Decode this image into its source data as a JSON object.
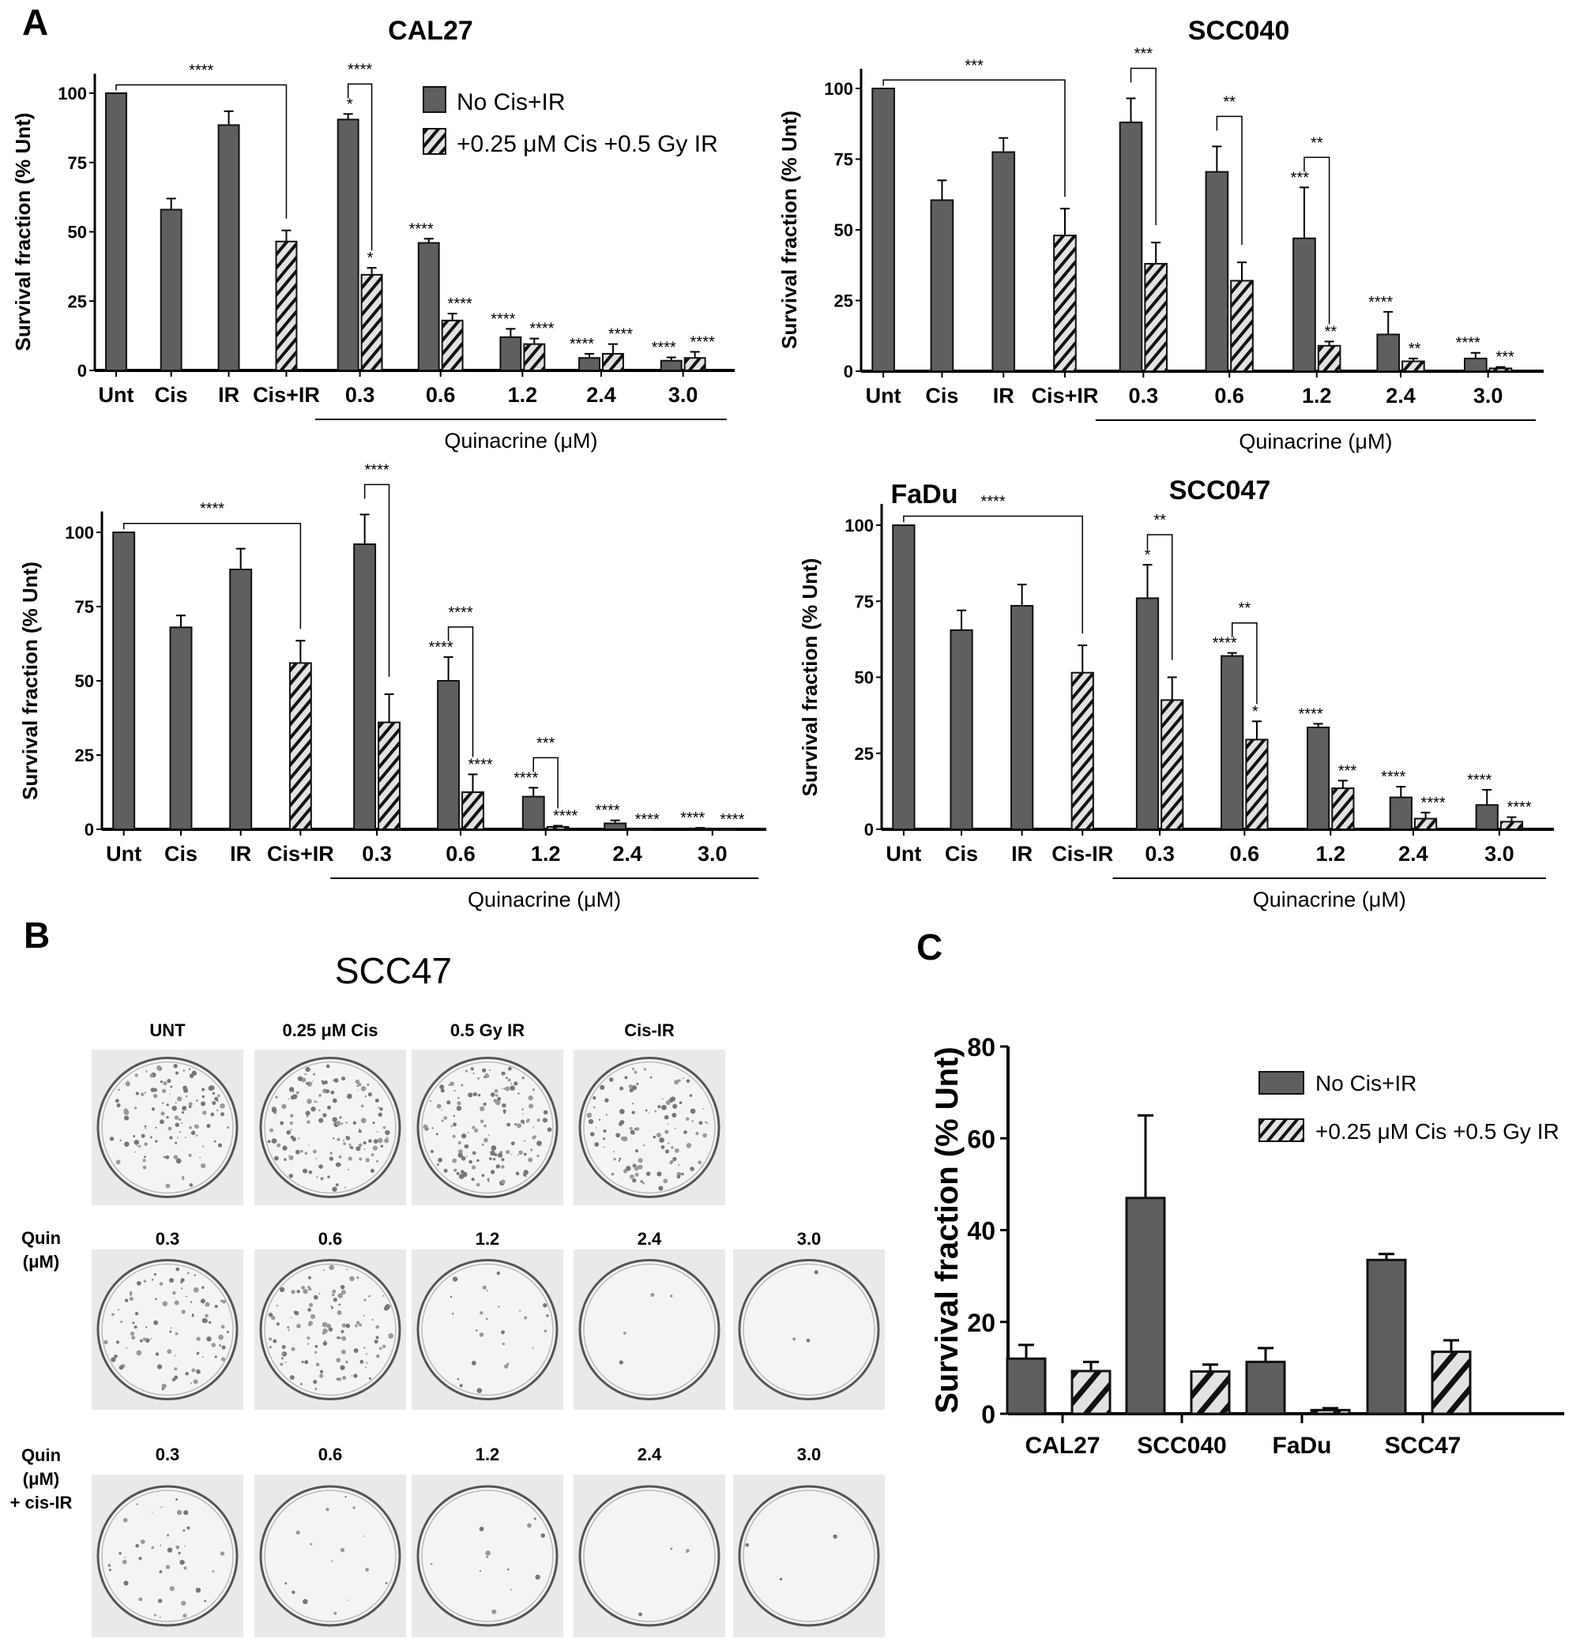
{
  "colors": {
    "no_cis_ir": "#5f5f5f",
    "cis_ir_hatch_bg": "#e2e2e2",
    "axis": "#000000"
  },
  "panel_labels": {
    "a": "A",
    "b": "B",
    "c": "C"
  },
  "legend": {
    "no_cis_ir": "No Cis+IR",
    "cis_ir": "+0.25 μM Cis +0.5 Gy IR"
  },
  "chart_data": [
    {
      "type": "bar",
      "title": "CAL27",
      "ylabel": "Survival fraction (% Unt)",
      "xlabel": "Quinacrine (μM)",
      "ylim": [
        0,
        107
      ],
      "yticks": [
        0,
        25,
        50,
        75,
        100
      ],
      "legend": "top-right",
      "categories": [
        "Unt",
        "Cis",
        "IR",
        "Cis+IR",
        "0.3",
        "0.6",
        "1.2",
        "2.4",
        "3.0"
      ],
      "series": [
        {
          "name": "No Cis+IR",
          "values": [
            100,
            58,
            88.5,
            null,
            90.5,
            46,
            12,
            4.5,
            3.5
          ],
          "errors": [
            0,
            4,
            5,
            null,
            2,
            1.5,
            3,
            1.5,
            1.2
          ],
          "sig": [
            "",
            "",
            "",
            "",
            "*",
            "****",
            "****",
            "****",
            "****"
          ]
        },
        {
          "name": "+0.25 μM Cis +0.5 Gy IR",
          "values": [
            null,
            null,
            null,
            46.5,
            34.5,
            18,
            9.5,
            6,
            4.5
          ],
          "errors": [
            null,
            null,
            null,
            4,
            2.5,
            2.5,
            2,
            3.5,
            2.2
          ],
          "sig": [
            "",
            "",
            "",
            "",
            "*",
            "****",
            "****",
            "****",
            "****"
          ]
        }
      ],
      "brackets": [
        {
          "from": "Unt",
          "to": "Cis+IR",
          "label": "****"
        },
        {
          "from": "0.3",
          "to": "0.3",
          "label": "****"
        }
      ]
    },
    {
      "type": "bar",
      "title": "SCC040",
      "ylabel": "Survival fraction (% Unt)",
      "xlabel": "Quinacrine (μM)",
      "ylim": [
        0,
        107
      ],
      "yticks": [
        0,
        25,
        50,
        75,
        100
      ],
      "categories": [
        "Unt",
        "Cis",
        "IR",
        "Cis+IR",
        "0.3",
        "0.6",
        "1.2",
        "2.4",
        "3.0"
      ],
      "series": [
        {
          "name": "No Cis+IR",
          "values": [
            100,
            60.5,
            77.5,
            null,
            88,
            70.5,
            47,
            13,
            4.5
          ],
          "errors": [
            0,
            7,
            5,
            null,
            8.5,
            9,
            18,
            8,
            2
          ],
          "sig": [
            "",
            "",
            "",
            "",
            "",
            "",
            "***",
            "****",
            "****"
          ]
        },
        {
          "name": "+0.25 μM Cis +0.5 Gy IR",
          "values": [
            null,
            null,
            null,
            48,
            38,
            32,
            9,
            3.5,
            1
          ],
          "errors": [
            null,
            null,
            null,
            9.5,
            7.5,
            6.5,
            1.5,
            1,
            0.5
          ],
          "sig": [
            "",
            "",
            "",
            "",
            "",
            "",
            "**",
            "**",
            "***"
          ]
        }
      ],
      "brackets": [
        {
          "from": "Unt",
          "to": "Cis+IR",
          "label": "***"
        },
        {
          "from": "0.3",
          "to": "0.3",
          "label": "***"
        },
        {
          "from": "0.6",
          "to": "0.6",
          "label": "**"
        },
        {
          "from": "1.2",
          "to": "1.2",
          "label": "**"
        }
      ]
    },
    {
      "type": "bar",
      "title": "FaDu",
      "ylabel": "Survival fraction (% Unt)",
      "xlabel": "Quinacrine (μM)",
      "ylim": [
        0,
        107
      ],
      "yticks": [
        0,
        25,
        50,
        75,
        100
      ],
      "categories": [
        "Unt",
        "Cis",
        "IR",
        "Cis+IR",
        "0.3",
        "0.6",
        "1.2",
        "2.4",
        "3.0"
      ],
      "series": [
        {
          "name": "No Cis+IR",
          "values": [
            100,
            68,
            87.5,
            null,
            96,
            50,
            11,
            2,
            0.3
          ],
          "errors": [
            0,
            4,
            7,
            null,
            10,
            8,
            3,
            1,
            0.2
          ],
          "sig": [
            "",
            "",
            "",
            "",
            "",
            "****",
            "****",
            "****",
            "****"
          ]
        },
        {
          "name": "+0.25 μM Cis +0.5 Gy IR",
          "values": [
            null,
            null,
            null,
            56,
            36,
            12.5,
            0.8,
            0,
            0
          ],
          "errors": [
            null,
            null,
            null,
            7.5,
            9.5,
            6,
            0.4,
            0,
            0
          ],
          "sig": [
            "",
            "",
            "",
            "",
            "",
            "****",
            "****",
            "****",
            "****"
          ]
        }
      ],
      "brackets": [
        {
          "from": "Unt",
          "to": "Cis+IR",
          "label": "****"
        },
        {
          "from": "0.3",
          "to": "0.3",
          "label": "****"
        },
        {
          "from": "0.6",
          "to": "0.6",
          "label": "****"
        },
        {
          "from": "1.2",
          "to": "1.2",
          "label": "***"
        }
      ]
    },
    {
      "type": "bar",
      "title": "SCC047",
      "ylabel": "Survival fraction (% Unt)",
      "xlabel": "Quinacrine (μM)",
      "ylim": [
        0,
        107
      ],
      "yticks": [
        0,
        25,
        50,
        75,
        100
      ],
      "categories": [
        "Unt",
        "Cis",
        "IR",
        "Cis-IR",
        "0.3",
        "0.6",
        "1.2",
        "2.4",
        "3.0"
      ],
      "series": [
        {
          "name": "No Cis+IR",
          "values": [
            100,
            65.5,
            73.5,
            null,
            76,
            57,
            33.5,
            10.5,
            8
          ],
          "errors": [
            0,
            6.5,
            7,
            null,
            11,
            1,
            1.2,
            3.5,
            5
          ],
          "sig": [
            "",
            "",
            "",
            "",
            "*",
            "****",
            "****",
            "****",
            "****"
          ]
        },
        {
          "name": "+0.25 μM Cis +0.5 Gy IR",
          "values": [
            null,
            null,
            null,
            51.5,
            42.5,
            29.5,
            13.5,
            3.5,
            2.5
          ],
          "errors": [
            null,
            null,
            null,
            9,
            7.5,
            6,
            2.5,
            2,
            1.5
          ],
          "sig": [
            "",
            "",
            "",
            "",
            "",
            "*",
            "***",
            "****",
            "****"
          ]
        }
      ],
      "brackets": [
        {
          "from": "Unt",
          "to": "Cis-IR",
          "label": "****"
        },
        {
          "from": "0.3",
          "to": "0.3",
          "label": "**"
        },
        {
          "from": "0.6",
          "to": "0.6",
          "label": "**"
        }
      ]
    },
    {
      "type": "bar",
      "title": "",
      "ylabel": "Survival fraction (%  Unt)",
      "xlabel": "",
      "ylim": [
        0,
        80
      ],
      "yticks": [
        0,
        20,
        40,
        60,
        80
      ],
      "legend": "top-right",
      "categories": [
        "CAL27",
        "SCC040",
        "FaDu",
        "SCC47"
      ],
      "series": [
        {
          "name": "No Cis+IR",
          "values": [
            12,
            47,
            11.3,
            33.5
          ],
          "errors": [
            3,
            18,
            3,
            1.3
          ]
        },
        {
          "name": "+0.25 μM Cis +0.5 Gy IR",
          "values": [
            9.3,
            9.2,
            0.8,
            13.5
          ],
          "errors": [
            2,
            1.5,
            0.4,
            2.5
          ]
        }
      ]
    }
  ],
  "colony_panel": {
    "title": "SCC47",
    "row1_labels": [
      "UNT",
      "0.25 μM Cis",
      "0.5 Gy IR",
      "Cis-IR"
    ],
    "row2_side": [
      "Quin",
      "(μM)"
    ],
    "row2_labels": [
      "0.3",
      "0.6",
      "1.2",
      "2.4",
      "3.0"
    ],
    "row3_side": [
      "Quin",
      "(μM)",
      "+ cis-IR"
    ],
    "row3_labels": [
      "0.3",
      "0.6",
      "1.2",
      "2.4",
      "3.0"
    ]
  }
}
